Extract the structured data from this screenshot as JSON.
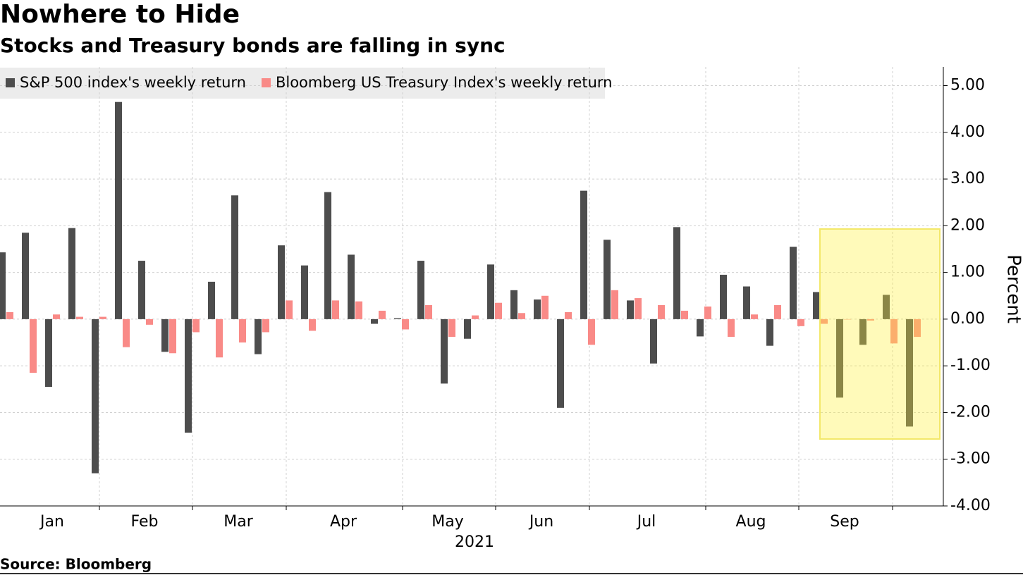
{
  "chart_data": {
    "type": "bar",
    "title": "Nowhere to Hide",
    "subtitle": "Stocks and Treasury bonds are falling in sync",
    "source": "Source: Bloomberg",
    "y_label": "Percent",
    "x_labels": [
      "Jan",
      "Feb",
      "Mar",
      "Apr",
      "May",
      "Jun",
      "Jul",
      "Aug",
      "Sep"
    ],
    "year_label": "2021",
    "categories": [
      null,
      null,
      null,
      null,
      null,
      null,
      null,
      null,
      null,
      null,
      null,
      null,
      null,
      null,
      null,
      null,
      null,
      null,
      null,
      null,
      null,
      null,
      null,
      null,
      null,
      null,
      null,
      null,
      null,
      null,
      null,
      null,
      null,
      null,
      null,
      null,
      null,
      null,
      null,
      null
    ],
    "series": [
      {
        "name": "S&P 500 index's weekly return",
        "color": "#4d4d4d",
        "values": [
          1.43,
          1.85,
          -1.45,
          1.95,
          -3.3,
          4.65,
          1.25,
          -0.7,
          -2.43,
          0.8,
          2.65,
          -0.75,
          1.58,
          1.15,
          2.72,
          1.38,
          -0.1,
          0.02,
          1.25,
          -1.38,
          -0.42,
          1.17,
          0.62,
          0.42,
          -1.9,
          2.75,
          1.7,
          0.4,
          -0.95,
          1.97,
          -0.37,
          0.95,
          0.7,
          -0.57,
          1.55,
          0.58,
          -1.68,
          -0.55,
          0.52,
          -2.3
        ]
      },
      {
        "name": "Bloomberg US Treasury Index's weekly return",
        "color": "#f98a87",
        "values": [
          0.15,
          -1.15,
          0.1,
          0.05,
          0.05,
          -0.6,
          -0.12,
          -0.73,
          -0.28,
          -0.82,
          -0.5,
          -0.28,
          0.4,
          -0.25,
          0.4,
          0.38,
          0.18,
          -0.22,
          0.3,
          -0.38,
          0.08,
          0.35,
          0.13,
          0.5,
          0.15,
          -0.55,
          0.62,
          0.45,
          0.3,
          0.18,
          0.27,
          -0.38,
          0.1,
          0.3,
          -0.15,
          -0.1,
          0,
          -0.03,
          -0.52,
          -0.38
        ]
      }
    ],
    "ylim": [
      -4,
      5.4
    ],
    "yticks": [
      {
        "value": 5,
        "label": "5.00"
      },
      {
        "value": 4,
        "label": "4.00"
      },
      {
        "value": 3,
        "label": "3.00"
      },
      {
        "value": 2,
        "label": "2.00"
      },
      {
        "value": 1,
        "label": "1.00"
      },
      {
        "value": 0,
        "label": "0.00"
      },
      {
        "value": -1,
        "label": "-1.00"
      },
      {
        "value": -2,
        "label": "-2.00"
      },
      {
        "value": -3,
        "label": "-3.00"
      },
      {
        "value": -4,
        "label": "-4.00"
      }
    ],
    "grid": true
  }
}
